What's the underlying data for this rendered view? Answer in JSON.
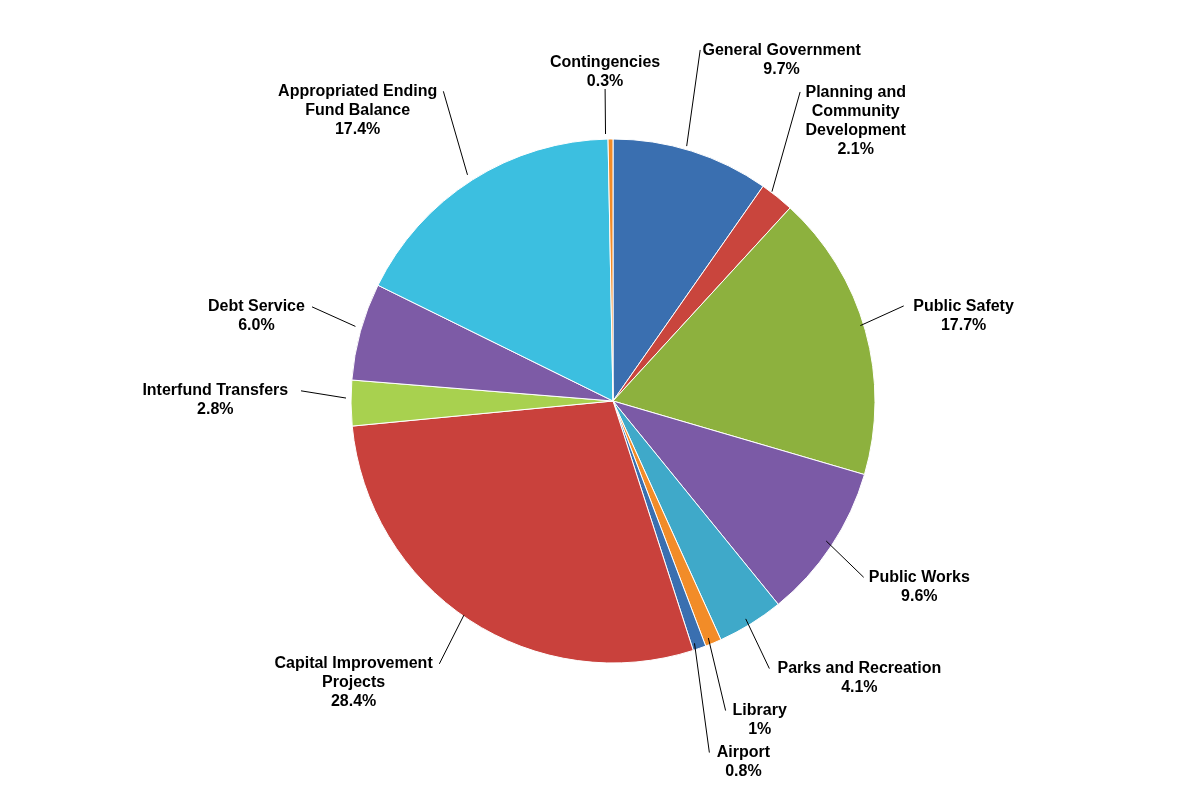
{
  "chart_data": {
    "type": "pie",
    "categories": [
      "General Government",
      "Planning and Community Development",
      "Public Safety",
      "Public Works",
      "Parks and Recreation",
      "Library",
      "Airport",
      "Capital Improvement Projects",
      "Interfund Transfers",
      "Debt Service",
      "Appropriated Ending Fund Balance",
      "Contingencies"
    ],
    "values": [
      9.7,
      2.1,
      17.7,
      9.6,
      4.1,
      1,
      0.8,
      28.4,
      2.8,
      6.0,
      17.4,
      0.3
    ],
    "colors": [
      "#3a6fb0",
      "#c9453d",
      "#8db13e",
      "#7b5aa6",
      "#3fa9c9",
      "#f28c28",
      "#3a6fb0",
      "#c9413c",
      "#a8d14f",
      "#7d5ba6",
      "#3cbfe0",
      "#f28c28"
    ],
    "value_labels": [
      "9.7%",
      "2.1%",
      "17.7%",
      "9.6%",
      "4.1%",
      "1%",
      "0.8%",
      "28.4%",
      "2.8%",
      "6.0%",
      "17.4%",
      "0.3%"
    ]
  }
}
